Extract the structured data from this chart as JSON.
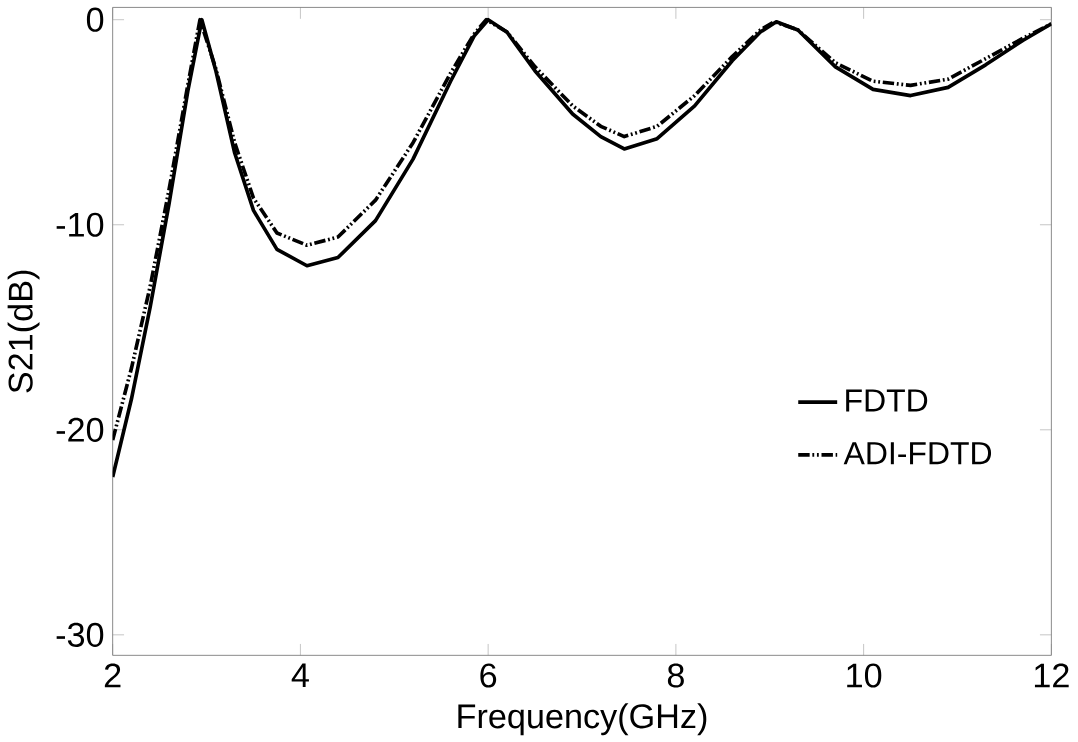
{
  "chart_data": {
    "type": "line",
    "xlabel": "Frequency(GHz)",
    "ylabel": "S21(dB)",
    "xlim": [
      2,
      12
    ],
    "ylim": [
      -31,
      0.6
    ],
    "xticks": [
      2,
      4,
      6,
      8,
      10,
      12
    ],
    "yticks": [
      -30,
      -20,
      -10,
      0
    ],
    "grid": false,
    "legend": "right",
    "marker": "none",
    "series": [
      {
        "name": "FDTD",
        "color": "#000000",
        "line_style": "solid",
        "x": [
          2,
          2.2,
          2.4,
          2.6,
          2.8,
          2.95,
          3.1,
          3.3,
          3.5,
          3.75,
          4.07,
          4.4,
          4.8,
          5.2,
          5.6,
          5.85,
          6.0,
          6.2,
          6.5,
          6.9,
          7.2,
          7.45,
          7.8,
          8.2,
          8.6,
          8.9,
          9.07,
          9.3,
          9.7,
          10.1,
          10.5,
          10.9,
          11.3,
          11.7,
          12
        ],
        "values": [
          -22.3,
          -18.5,
          -14,
          -9,
          -3.5,
          0,
          -2.5,
          -6.5,
          -9.3,
          -11.2,
          -12.0,
          -11.6,
          -9.8,
          -6.8,
          -3.0,
          -0.8,
          0,
          -0.6,
          -2.5,
          -4.6,
          -5.7,
          -6.3,
          -5.8,
          -4.2,
          -2.0,
          -0.6,
          -0.1,
          -0.5,
          -2.3,
          -3.4,
          -3.7,
          -3.3,
          -2.2,
          -1.0,
          -0.2
        ]
      },
      {
        "name": "ADI-FDTD",
        "color": "#000000",
        "line_style": "dashed",
        "x": [
          2,
          2.2,
          2.4,
          2.6,
          2.8,
          2.93,
          3.1,
          3.3,
          3.5,
          3.75,
          4.07,
          4.4,
          4.8,
          5.2,
          5.6,
          5.85,
          5.98,
          6.2,
          6.5,
          6.9,
          7.2,
          7.45,
          7.8,
          8.2,
          8.6,
          8.9,
          9.05,
          9.3,
          9.7,
          10.1,
          10.5,
          10.9,
          11.3,
          11.7,
          12
        ],
        "values": [
          -20.5,
          -17,
          -13,
          -8.3,
          -3.2,
          0,
          -2.4,
          -6.0,
          -8.7,
          -10.4,
          -11.0,
          -10.6,
          -8.8,
          -6.0,
          -2.6,
          -0.7,
          0,
          -0.6,
          -2.3,
          -4.2,
          -5.2,
          -5.7,
          -5.2,
          -3.7,
          -1.8,
          -0.5,
          -0.1,
          -0.5,
          -2.1,
          -3.0,
          -3.2,
          -2.9,
          -1.9,
          -0.9,
          -0.2
        ]
      }
    ]
  }
}
